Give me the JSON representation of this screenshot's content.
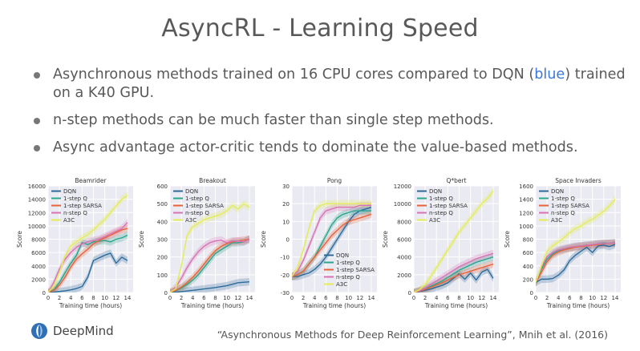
{
  "slide": {
    "title": "AsyncRL - Learning Speed",
    "bullets": [
      {
        "pre": "Asynchronous methods trained on 16 CPU cores compared to DQN (",
        "highlight": "blue",
        "post": ") trained on a K40 GPU."
      },
      {
        "text": "n-step methods can be much faster than single step methods."
      },
      {
        "text": "Async advantage actor-critic tends to dominate the value-based methods."
      }
    ],
    "logo_text": "DeepMind",
    "citation": "“Asynchronous Methods for Deep Reinforcement Learning”, Mnih et al. (2016)"
  },
  "chart_data": [
    {
      "type": "line",
      "title": "Beamrider",
      "xlabel": "Training time (hours)",
      "ylabel": "Score",
      "xlim": [
        0,
        15
      ],
      "ylim": [
        0,
        16000
      ],
      "xticks": [
        0,
        2,
        4,
        6,
        8,
        10,
        12,
        14
      ],
      "yticks": [
        0,
        2000,
        4000,
        6000,
        8000,
        10000,
        12000,
        14000,
        16000
      ],
      "legend": "top-left",
      "series": [
        {
          "name": "DQN",
          "color": "#2c6b9a",
          "x": [
            0,
            1,
            2,
            3,
            4,
            5,
            6,
            7,
            8,
            9,
            10,
            11,
            12,
            13,
            14
          ],
          "y": [
            0,
            50,
            150,
            250,
            400,
            600,
            900,
            2300,
            4800,
            5200,
            5600,
            5900,
            4400,
            5300,
            4800
          ]
        },
        {
          "name": "1-step Q",
          "color": "#2ca58d",
          "x": [
            0,
            1,
            2,
            3,
            4,
            5,
            6,
            7,
            8,
            9,
            10,
            11,
            12,
            13,
            14
          ],
          "y": [
            0,
            400,
            1500,
            3000,
            4400,
            5600,
            7500,
            7200,
            7600,
            7700,
            7800,
            7600,
            8000,
            8200,
            8600
          ]
        },
        {
          "name": "1-step SARSA",
          "color": "#e8633a",
          "x": [
            0,
            1,
            2,
            3,
            4,
            5,
            6,
            7,
            8,
            9,
            10,
            11,
            12,
            13,
            14
          ],
          "y": [
            0,
            300,
            1100,
            2300,
            3800,
            5000,
            5800,
            6500,
            7300,
            7800,
            8200,
            8600,
            9000,
            9400,
            9600
          ]
        },
        {
          "name": "n-step Q",
          "color": "#d873b4",
          "x": [
            0,
            1,
            2,
            3,
            4,
            5,
            6,
            7,
            8,
            9,
            10,
            11,
            12,
            13,
            14
          ],
          "y": [
            0,
            1500,
            3500,
            5000,
            6000,
            6800,
            7300,
            7600,
            7800,
            8000,
            8400,
            8800,
            9200,
            9600,
            10500
          ]
        },
        {
          "name": "A3C",
          "color": "#e4ec5a",
          "x": [
            0,
            1,
            2,
            3,
            4,
            5,
            6,
            7,
            8,
            9,
            10,
            11,
            12,
            13,
            14
          ],
          "y": [
            0,
            1000,
            3000,
            5500,
            7000,
            7600,
            8200,
            8700,
            9400,
            10200,
            11000,
            12000,
            13000,
            14000,
            14600
          ]
        }
      ]
    },
    {
      "type": "line",
      "title": "Breakout",
      "xlabel": "Training time (hours)",
      "ylabel": "Score",
      "xlim": [
        0,
        15
      ],
      "ylim": [
        0,
        600
      ],
      "xticks": [
        0,
        2,
        4,
        6,
        8,
        10,
        12,
        14
      ],
      "yticks": [
        0,
        100,
        200,
        300,
        400,
        500,
        600
      ],
      "legend": "top-left",
      "series": [
        {
          "name": "DQN",
          "color": "#2c6b9a",
          "x": [
            0,
            2,
            4,
            6,
            8,
            10,
            12,
            14
          ],
          "y": [
            0,
            5,
            12,
            20,
            28,
            38,
            55,
            60
          ]
        },
        {
          "name": "1-step Q",
          "color": "#2ca58d",
          "x": [
            0,
            1,
            2,
            3,
            4,
            5,
            6,
            7,
            8,
            9,
            10,
            11,
            12,
            13,
            14
          ],
          "y": [
            0,
            10,
            25,
            45,
            70,
            100,
            140,
            180,
            220,
            240,
            260,
            280,
            280,
            285,
            300
          ]
        },
        {
          "name": "1-step SARSA",
          "color": "#e8633a",
          "x": [
            0,
            1,
            2,
            3,
            4,
            5,
            6,
            7,
            8,
            9,
            10,
            11,
            12,
            13,
            14
          ],
          "y": [
            0,
            12,
            30,
            55,
            85,
            120,
            160,
            200,
            235,
            260,
            275,
            285,
            290,
            295,
            300
          ]
        },
        {
          "name": "n-step Q",
          "color": "#d873b4",
          "x": [
            0,
            1,
            2,
            3,
            4,
            5,
            6,
            7,
            8,
            9,
            10,
            11,
            12,
            13,
            14
          ],
          "y": [
            0,
            30,
            80,
            140,
            190,
            230,
            260,
            280,
            290,
            295,
            280,
            290,
            290,
            285,
            300
          ]
        },
        {
          "name": "A3C",
          "color": "#e4ec5a",
          "x": [
            0,
            1,
            2,
            3,
            4,
            5,
            6,
            7,
            8,
            9,
            10,
            11,
            12,
            13,
            14
          ],
          "y": [
            0,
            20,
            150,
            320,
            370,
            390,
            410,
            420,
            430,
            440,
            460,
            490,
            470,
            500,
            480
          ]
        }
      ]
    },
    {
      "type": "line",
      "title": "Pong",
      "xlabel": "Training time (hours)",
      "ylabel": "Score",
      "xlim": [
        0,
        15
      ],
      "ylim": [
        -30,
        30
      ],
      "xticks": [
        0,
        2,
        4,
        6,
        8,
        10,
        12,
        14
      ],
      "yticks": [
        -30,
        -20,
        -10,
        0,
        10,
        20,
        30
      ],
      "legend": "bottom-center",
      "series": [
        {
          "name": "DQN",
          "color": "#2c6b9a",
          "x": [
            0,
            1,
            2,
            3,
            4,
            5,
            6,
            7,
            8,
            9,
            10,
            11,
            12,
            13,
            14
          ],
          "y": [
            -21,
            -21,
            -20,
            -19,
            -17,
            -14,
            -10,
            -5,
            0,
            5,
            10,
            14,
            16,
            17,
            18
          ]
        },
        {
          "name": "1-step Q",
          "color": "#2ca58d",
          "x": [
            0,
            1,
            2,
            3,
            4,
            5,
            6,
            7,
            8,
            9,
            10,
            11,
            12,
            13,
            14
          ],
          "y": [
            -21,
            -20,
            -18,
            -14,
            -10,
            -4,
            2,
            8,
            12,
            14,
            15,
            16,
            16,
            16,
            16
          ]
        },
        {
          "name": "1-step SARSA",
          "color": "#e8633a",
          "x": [
            0,
            1,
            2,
            3,
            4,
            5,
            6,
            7,
            8,
            9,
            10,
            11,
            12,
            13,
            14
          ],
          "y": [
            -21,
            -20,
            -18,
            -14,
            -10,
            -6,
            -2,
            2,
            5,
            8,
            10,
            11,
            12,
            13,
            14
          ]
        },
        {
          "name": "n-step Q",
          "color": "#d873b4",
          "x": [
            0,
            1,
            2,
            3,
            4,
            5,
            6,
            7,
            8,
            9,
            10,
            11,
            12,
            13,
            14
          ],
          "y": [
            -21,
            -18,
            -12,
            -4,
            4,
            12,
            16,
            17,
            18,
            18,
            18,
            18,
            19,
            19,
            19
          ]
        },
        {
          "name": "A3C",
          "color": "#e4ec5a",
          "x": [
            0,
            1,
            2,
            3,
            4,
            5,
            6,
            7,
            8,
            9,
            10,
            11,
            12,
            13,
            14
          ],
          "y": [
            -21,
            -16,
            -6,
            6,
            16,
            19,
            20,
            20,
            20,
            20,
            20,
            20,
            20,
            20,
            20
          ]
        }
      ]
    },
    {
      "type": "line",
      "title": "Q*bert",
      "xlabel": "Training time (hours)",
      "ylabel": "Score",
      "xlim": [
        0,
        15
      ],
      "ylim": [
        0,
        12000
      ],
      "xticks": [
        0,
        2,
        4,
        6,
        8,
        10,
        12,
        14
      ],
      "yticks": [
        0,
        2000,
        4000,
        6000,
        8000,
        10000,
        12000
      ],
      "legend": "top-left",
      "series": [
        {
          "name": "DQN",
          "color": "#2c6b9a",
          "x": [
            0,
            1,
            2,
            3,
            4,
            5,
            6,
            7,
            8,
            9,
            10,
            11,
            12,
            13,
            14
          ],
          "y": [
            0,
            100,
            250,
            400,
            600,
            800,
            1100,
            1600,
            2100,
            1500,
            2200,
            1400,
            2300,
            2600,
            1600
          ]
        },
        {
          "name": "1-step Q",
          "color": "#2ca58d",
          "x": [
            0,
            1,
            2,
            3,
            4,
            5,
            6,
            7,
            8,
            9,
            10,
            11,
            12,
            13,
            14
          ],
          "y": [
            0,
            200,
            400,
            700,
            1000,
            1300,
            1700,
            2100,
            2500,
            2800,
            3100,
            3400,
            3600,
            3800,
            4000
          ]
        },
        {
          "name": "1-step SARSA",
          "color": "#e8633a",
          "x": [
            0,
            1,
            2,
            3,
            4,
            5,
            6,
            7,
            8,
            9,
            10,
            11,
            12,
            13,
            14
          ],
          "y": [
            0,
            150,
            350,
            600,
            850,
            1100,
            1400,
            1700,
            2000,
            2200,
            2400,
            2600,
            2800,
            3000,
            3200
          ]
        },
        {
          "name": "n-step Q",
          "color": "#d873b4",
          "x": [
            0,
            1,
            2,
            3,
            4,
            5,
            6,
            7,
            8,
            9,
            10,
            11,
            12,
            13,
            14
          ],
          "y": [
            0,
            200,
            500,
            900,
            1300,
            1700,
            2100,
            2500,
            2900,
            3200,
            3500,
            3800,
            4000,
            4200,
            4400
          ]
        },
        {
          "name": "A3C",
          "color": "#e4ec5a",
          "x": [
            0,
            1,
            2,
            3,
            4,
            5,
            6,
            7,
            8,
            9,
            10,
            11,
            12,
            13,
            14
          ],
          "y": [
            0,
            300,
            900,
            1800,
            2800,
            3800,
            4800,
            5800,
            6800,
            7600,
            8400,
            9200,
            10000,
            10600,
            11400
          ]
        }
      ]
    },
    {
      "type": "line",
      "title": "Space Invaders",
      "xlabel": "Training time (hours)",
      "ylabel": "Score",
      "xlim": [
        0,
        15
      ],
      "ylim": [
        0,
        1600
      ],
      "xticks": [
        0,
        2,
        4,
        6,
        8,
        10,
        12,
        14
      ],
      "yticks": [
        0,
        200,
        400,
        600,
        800,
        1000,
        1200,
        1400,
        1600
      ],
      "legend": "top-left",
      "series": [
        {
          "name": "DQN",
          "color": "#2c6b9a",
          "x": [
            0,
            1,
            2,
            3,
            4,
            5,
            6,
            7,
            8,
            9,
            10,
            11,
            12,
            13,
            14
          ],
          "y": [
            150,
            200,
            200,
            210,
            260,
            340,
            480,
            560,
            620,
            680,
            600,
            700,
            710,
            690,
            720
          ]
        },
        {
          "name": "1-step Q",
          "color": "#2ca58d",
          "x": [
            0,
            1,
            2,
            3,
            4,
            5,
            6,
            7,
            8,
            9,
            10,
            11,
            12,
            13,
            14
          ],
          "y": [
            150,
            350,
            500,
            580,
            630,
            650,
            670,
            690,
            700,
            710,
            720,
            730,
            740,
            740,
            750
          ]
        },
        {
          "name": "1-step SARSA",
          "color": "#e8633a",
          "x": [
            0,
            1,
            2,
            3,
            4,
            5,
            6,
            7,
            8,
            9,
            10,
            11,
            12,
            13,
            14
          ],
          "y": [
            150,
            300,
            460,
            560,
            610,
            640,
            660,
            680,
            690,
            700,
            710,
            720,
            730,
            740,
            740
          ]
        },
        {
          "name": "n-step Q",
          "color": "#d873b4",
          "x": [
            0,
            1,
            2,
            3,
            4,
            5,
            6,
            7,
            8,
            9,
            10,
            11,
            12,
            13,
            14
          ],
          "y": [
            150,
            380,
            540,
            600,
            640,
            660,
            680,
            690,
            700,
            710,
            720,
            730,
            735,
            740,
            745
          ]
        },
        {
          "name": "A3C",
          "color": "#e4ec5a",
          "x": [
            0,
            1,
            2,
            3,
            4,
            5,
            6,
            7,
            8,
            9,
            10,
            11,
            12,
            13,
            14
          ],
          "y": [
            150,
            400,
            620,
            700,
            760,
            820,
            900,
            960,
            1000,
            1060,
            1100,
            1160,
            1220,
            1300,
            1400
          ]
        }
      ]
    }
  ]
}
